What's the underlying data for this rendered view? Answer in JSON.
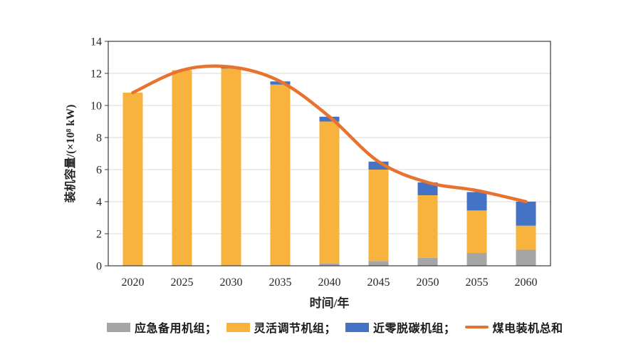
{
  "chart_data": {
    "type": "bar",
    "subtype": "stacked-bar-with-line-overlay",
    "title": "",
    "xlabel": "时间/年",
    "ylabel": "装机容量/(×10⁸ kW)",
    "categories": [
      "2020",
      "2025",
      "2030",
      "2035",
      "2040",
      "2045",
      "2050",
      "2055",
      "2060"
    ],
    "y_ticks": [
      0,
      2,
      4,
      6,
      8,
      10,
      12,
      14
    ],
    "ylim": [
      0,
      14
    ],
    "grid": "horizontal",
    "legend_position": "bottom",
    "series": [
      {
        "key": "emergency-backup",
        "name": "应急备用机组",
        "type": "bar",
        "color": "#A6A6A6",
        "values": [
          0,
          0,
          0,
          0,
          0.15,
          0.3,
          0.5,
          0.8,
          1.0
        ]
      },
      {
        "key": "flexible-regulation",
        "name": "灵活调节机组",
        "type": "bar",
        "color": "#F7B33E",
        "values": [
          10.8,
          12.2,
          12.3,
          11.3,
          8.85,
          5.7,
          3.9,
          2.65,
          1.5
        ]
      },
      {
        "key": "near-zero-decarbon",
        "name": "近零脱碳机组",
        "type": "bar",
        "color": "#4472C4",
        "values": [
          0,
          0,
          0.1,
          0.2,
          0.3,
          0.5,
          0.8,
          1.15,
          1.5
        ]
      },
      {
        "key": "coal-total",
        "name": "煤电装机总和",
        "type": "line",
        "color": "#E8722F",
        "values": [
          10.8,
          12.2,
          12.4,
          11.5,
          9.3,
          6.5,
          5.2,
          4.7,
          4.0
        ]
      }
    ],
    "stack_totals": [
      10.8,
      12.2,
      12.4,
      11.5,
      9.3,
      6.5,
      5.2,
      4.6,
      4.0
    ]
  },
  "legend": {
    "items": [
      {
        "label": "应急备用机组；",
        "swatch": "box",
        "color": "#A6A6A6"
      },
      {
        "label": "灵活调节机组；",
        "swatch": "box",
        "color": "#F7B33E"
      },
      {
        "label": "近零脱碳机组；",
        "swatch": "box",
        "color": "#4472C4"
      },
      {
        "label": "煤电装机总和",
        "swatch": "line",
        "color": "#E8722F"
      }
    ]
  }
}
